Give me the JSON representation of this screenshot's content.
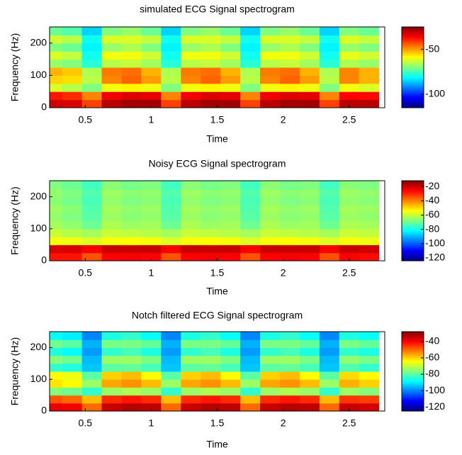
{
  "chart_data": [
    {
      "type": "heatmap",
      "title": "simulated ECG Signal spectrogram",
      "x_label": "Time",
      "y_label": "Frequency (Hz)",
      "x": [
        0.25,
        0.4,
        0.55,
        0.7,
        0.85,
        1.0,
        1.15,
        1.3,
        1.45,
        1.6,
        1.75,
        1.9,
        2.05,
        2.2,
        2.35,
        2.5,
        2.65
      ],
      "y": [
        12.5,
        37.5,
        62.5,
        87.5,
        112.5,
        137.5,
        162.5,
        187.5,
        212.5,
        237.5
      ],
      "values": [
        [
          -32,
          -33,
          -42,
          -30,
          -28,
          -28,
          -42,
          -30,
          -28,
          -28,
          -42,
          -30,
          -28,
          -28,
          -42,
          -30,
          -30
        ],
        [
          -38,
          -40,
          -48,
          -35,
          -33,
          -34,
          -48,
          -35,
          -33,
          -34,
          -48,
          -35,
          -33,
          -34,
          -48,
          -36,
          -37
        ],
        [
          -62,
          -65,
          -70,
          -60,
          -58,
          -60,
          -70,
          -60,
          -58,
          -60,
          -70,
          -60,
          -58,
          -60,
          -70,
          -60,
          -62
        ],
        [
          -55,
          -56,
          -65,
          -48,
          -45,
          -50,
          -65,
          -48,
          -45,
          -50,
          -65,
          -48,
          -45,
          -50,
          -65,
          -48,
          -52
        ],
        [
          -52,
          -54,
          -66,
          -47,
          -46,
          -52,
          -66,
          -47,
          -46,
          -52,
          -66,
          -47,
          -46,
          -52,
          -66,
          -48,
          -52
        ],
        [
          -68,
          -70,
          -78,
          -65,
          -64,
          -67,
          -78,
          -65,
          -64,
          -67,
          -78,
          -65,
          -64,
          -67,
          -78,
          -66,
          -68
        ],
        [
          -62,
          -64,
          -80,
          -60,
          -60,
          -63,
          -80,
          -60,
          -60,
          -63,
          -80,
          -60,
          -60,
          -63,
          -80,
          -61,
          -63
        ],
        [
          -70,
          -72,
          -82,
          -68,
          -66,
          -70,
          -82,
          -68,
          -66,
          -70,
          -82,
          -68,
          -66,
          -70,
          -82,
          -68,
          -70
        ],
        [
          -63,
          -65,
          -80,
          -62,
          -62,
          -64,
          -80,
          -62,
          -62,
          -64,
          -80,
          -62,
          -62,
          -64,
          -80,
          -62,
          -64
        ],
        [
          -72,
          -74,
          -85,
          -70,
          -68,
          -72,
          -85,
          -70,
          -68,
          -72,
          -85,
          -70,
          -68,
          -72,
          -85,
          -70,
          -72
        ]
      ],
      "xlim": [
        0.23,
        2.77
      ],
      "ylim": [
        0,
        250
      ],
      "xticks": [
        0.5,
        1,
        1.5,
        2,
        2.5
      ],
      "yticks": [
        0,
        100,
        200
      ],
      "clim": [
        -115,
        -25
      ],
      "cticks": [
        -50,
        -100
      ],
      "colormap": "jet"
    },
    {
      "type": "heatmap",
      "title": "Noisy ECG Signal spectrogram",
      "x_label": "Time",
      "y_label": "Frequency (Hz)",
      "x": [
        0.25,
        0.4,
        0.55,
        0.7,
        0.85,
        1.0,
        1.15,
        1.3,
        1.45,
        1.6,
        1.75,
        1.9,
        2.05,
        2.2,
        2.35,
        2.5,
        2.65
      ],
      "y": [
        12.5,
        37.5,
        62.5,
        87.5,
        112.5,
        137.5,
        162.5,
        187.5,
        212.5,
        237.5
      ],
      "values": [
        [
          -28,
          -28,
          -35,
          -26,
          -25,
          -26,
          -35,
          -26,
          -25,
          -26,
          -35,
          -26,
          -25,
          -26,
          -35,
          -26,
          -27
        ],
        [
          -22,
          -22,
          -25,
          -20,
          -20,
          -20,
          -25,
          -20,
          -20,
          -20,
          -25,
          -20,
          -20,
          -20,
          -25,
          -20,
          -21
        ],
        [
          -55,
          -56,
          -58,
          -55,
          -54,
          -55,
          -58,
          -55,
          -54,
          -55,
          -58,
          -55,
          -54,
          -55,
          -58,
          -55,
          -56
        ],
        [
          -60,
          -62,
          -64,
          -60,
          -61,
          -62,
          -64,
          -60,
          -61,
          -62,
          -64,
          -60,
          -61,
          -62,
          -64,
          -60,
          -61
        ],
        [
          -64,
          -66,
          -70,
          -63,
          -65,
          -64,
          -70,
          -63,
          -65,
          -64,
          -70,
          -63,
          -65,
          -64,
          -70,
          -63,
          -64
        ],
        [
          -66,
          -68,
          -72,
          -65,
          -67,
          -66,
          -72,
          -65,
          -67,
          -66,
          -72,
          -65,
          -67,
          -66,
          -72,
          -65,
          -66
        ],
        [
          -65,
          -67,
          -73,
          -64,
          -66,
          -65,
          -73,
          -64,
          -66,
          -65,
          -73,
          -64,
          -66,
          -65,
          -73,
          -64,
          -65
        ],
        [
          -67,
          -69,
          -74,
          -66,
          -68,
          -67,
          -74,
          -66,
          -68,
          -67,
          -74,
          -66,
          -68,
          -67,
          -74,
          -66,
          -67
        ],
        [
          -66,
          -68,
          -73,
          -65,
          -67,
          -66,
          -73,
          -65,
          -67,
          -66,
          -73,
          -65,
          -67,
          -66,
          -73,
          -65,
          -66
        ],
        [
          -68,
          -70,
          -75,
          -67,
          -69,
          -68,
          -75,
          -67,
          -69,
          -68,
          -75,
          -67,
          -69,
          -68,
          -75,
          -67,
          -68
        ]
      ],
      "xlim": [
        0.23,
        2.77
      ],
      "ylim": [
        0,
        250
      ],
      "xticks": [
        0.5,
        1,
        1.5,
        2,
        2.5
      ],
      "yticks": [
        0,
        100,
        200
      ],
      "clim": [
        -124,
        -12
      ],
      "cticks": [
        -20,
        -40,
        -60,
        -80,
        -100,
        -120
      ],
      "colormap": "jet"
    },
    {
      "type": "heatmap",
      "title": "Notch filtered ECG Signal spectrogram",
      "x_label": "Time",
      "y_label": "Frequency (Hz)",
      "x": [
        0.25,
        0.4,
        0.55,
        0.7,
        0.85,
        1.0,
        1.15,
        1.3,
        1.45,
        1.6,
        1.75,
        1.9,
        2.05,
        2.2,
        2.35,
        2.5,
        2.65
      ],
      "y": [
        12.5,
        37.5,
        62.5,
        87.5,
        112.5,
        137.5,
        162.5,
        187.5,
        212.5,
        237.5
      ],
      "values": [
        [
          -38,
          -39,
          -50,
          -35,
          -33,
          -34,
          -50,
          -35,
          -33,
          -34,
          -50,
          -35,
          -33,
          -34,
          -50,
          -35,
          -36
        ],
        [
          -48,
          -50,
          -58,
          -44,
          -42,
          -44,
          -58,
          -44,
          -42,
          -44,
          -58,
          -44,
          -42,
          -44,
          -58,
          -45,
          -46
        ],
        [
          -76,
          -78,
          -84,
          -74,
          -72,
          -74,
          -84,
          -74,
          -72,
          -74,
          -84,
          -74,
          -72,
          -74,
          -84,
          -74,
          -76
        ],
        [
          -62,
          -64,
          -74,
          -56,
          -54,
          -58,
          -74,
          -56,
          -54,
          -58,
          -74,
          -56,
          -54,
          -58,
          -74,
          -57,
          -60
        ],
        [
          -64,
          -66,
          -80,
          -60,
          -58,
          -64,
          -80,
          -60,
          -58,
          -64,
          -80,
          -60,
          -58,
          -64,
          -80,
          -61,
          -64
        ],
        [
          -84,
          -86,
          -94,
          -80,
          -79,
          -82,
          -94,
          -80,
          -79,
          -82,
          -94,
          -80,
          -79,
          -82,
          -94,
          -81,
          -84
        ],
        [
          -76,
          -78,
          -95,
          -74,
          -74,
          -77,
          -95,
          -74,
          -74,
          -77,
          -95,
          -74,
          -74,
          -77,
          -95,
          -75,
          -77
        ],
        [
          -86,
          -88,
          -98,
          -84,
          -82,
          -86,
          -98,
          -84,
          -82,
          -86,
          -98,
          -84,
          -82,
          -86,
          -98,
          -84,
          -86
        ],
        [
          -78,
          -80,
          -96,
          -77,
          -77,
          -79,
          -96,
          -77,
          -77,
          -79,
          -96,
          -77,
          -77,
          -79,
          -96,
          -77,
          -79
        ],
        [
          -88,
          -90,
          -100,
          -86,
          -84,
          -88,
          -100,
          -86,
          -84,
          -88,
          -100,
          -86,
          -84,
          -88,
          -100,
          -86,
          -88
        ]
      ],
      "xlim": [
        0.23,
        2.77
      ],
      "ylim": [
        0,
        250
      ],
      "xticks": [
        0.5,
        1,
        1.5,
        2,
        2.5
      ],
      "yticks": [
        0,
        100,
        200
      ],
      "clim": [
        -125,
        -28
      ],
      "cticks": [
        -40,
        -60,
        -80,
        -100,
        -120
      ],
      "colormap": "jet"
    }
  ]
}
